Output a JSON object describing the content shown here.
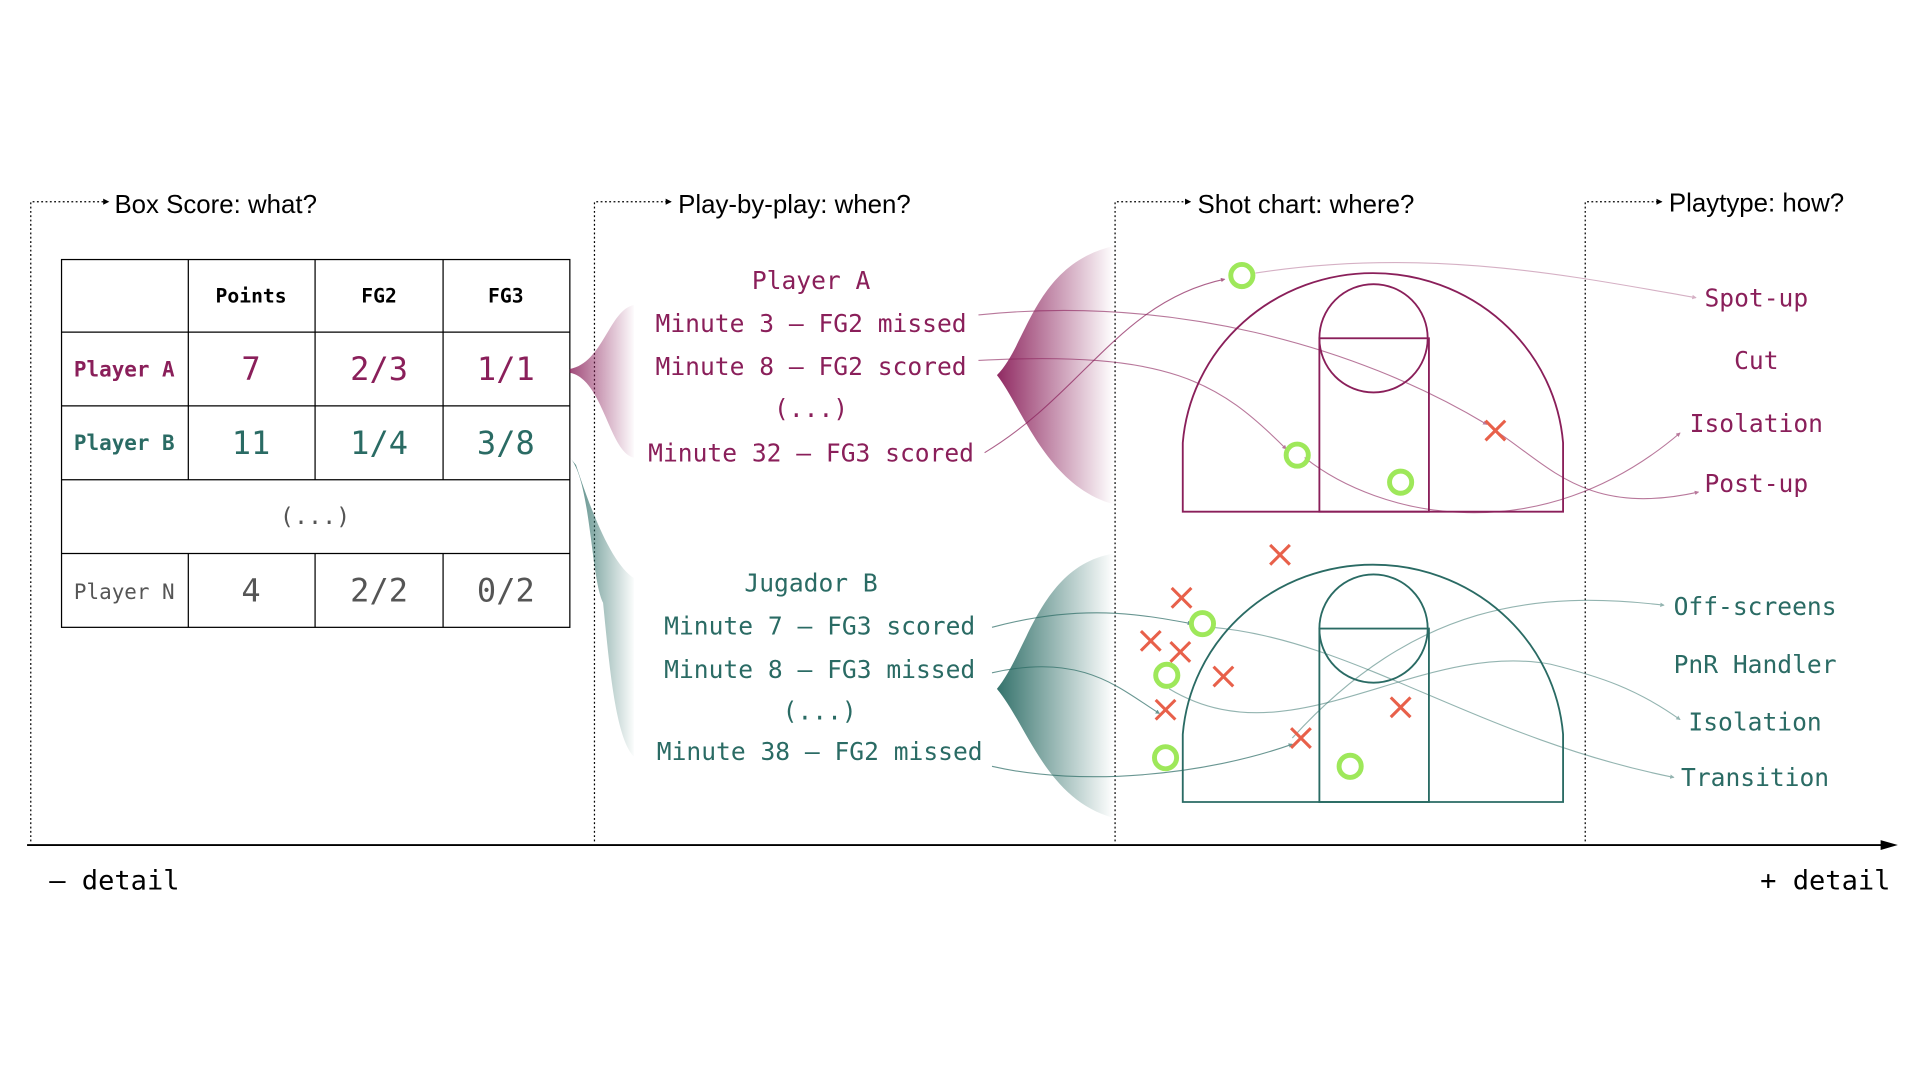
{
  "colors": {
    "player_a": "#8a1f5a",
    "player_b": "#2a6b64",
    "player_n": "#555555",
    "made_shot": "#9ee85a",
    "missed_shot": "#e8604a",
    "axis": "#000000"
  },
  "sections": {
    "box_score": "Box Score: what?",
    "play_by_play": "Play-by-play: when?",
    "shot_chart": "Shot chart: where?",
    "playtype": "Playtype: how?"
  },
  "box_score_table": {
    "headers": [
      "",
      "Points",
      "FG2",
      "FG3"
    ],
    "rows": [
      {
        "player": "Player A",
        "points": "7",
        "fg2": "2/3",
        "fg3": "1/1"
      },
      {
        "player": "Player B",
        "points": "11",
        "fg2": "1/4",
        "fg3": "3/8"
      },
      {
        "ellipsis": "(...)"
      },
      {
        "player": "Player N",
        "points": "4",
        "fg2": "2/2",
        "fg3": "0/2"
      }
    ]
  },
  "play_by_play": {
    "player_a": {
      "name": "Player A",
      "events": [
        "Minute 3 – FG2 missed",
        "Minute 8 – FG2 scored",
        "(...)",
        "Minute 32 – FG3 scored"
      ]
    },
    "player_b": {
      "name": "Jugador B",
      "events": [
        "Minute 7 – FG3 scored",
        "Minute 8 – FG3 missed",
        "(...)",
        "Minute 38 – FG2 missed"
      ]
    }
  },
  "shot_chart": {
    "player_a": {
      "made": [
        [
          1009,
          224
        ],
        [
          1054,
          370
        ],
        [
          1138,
          392
        ]
      ],
      "missed": [
        [
          1215,
          350
        ]
      ]
    },
    "player_b": {
      "made": [
        [
          977,
          507
        ],
        [
          948,
          549
        ],
        [
          947,
          616
        ],
        [
          1097,
          623
        ]
      ],
      "missed": [
        [
          1040,
          451
        ],
        [
          960,
          486
        ],
        [
          935,
          521
        ],
        [
          959,
          530
        ],
        [
          994,
          550
        ],
        [
          947,
          577
        ],
        [
          1057,
          600
        ],
        [
          1138,
          575
        ]
      ]
    }
  },
  "playtypes": {
    "player_a": [
      "Spot-up",
      "Cut",
      "Isolation",
      "Post-up"
    ],
    "player_b": [
      "Off-screens",
      "PnR Handler",
      "Isolation",
      "Transition"
    ]
  },
  "axis": {
    "left_label": "– detail",
    "right_label": "+ detail"
  }
}
